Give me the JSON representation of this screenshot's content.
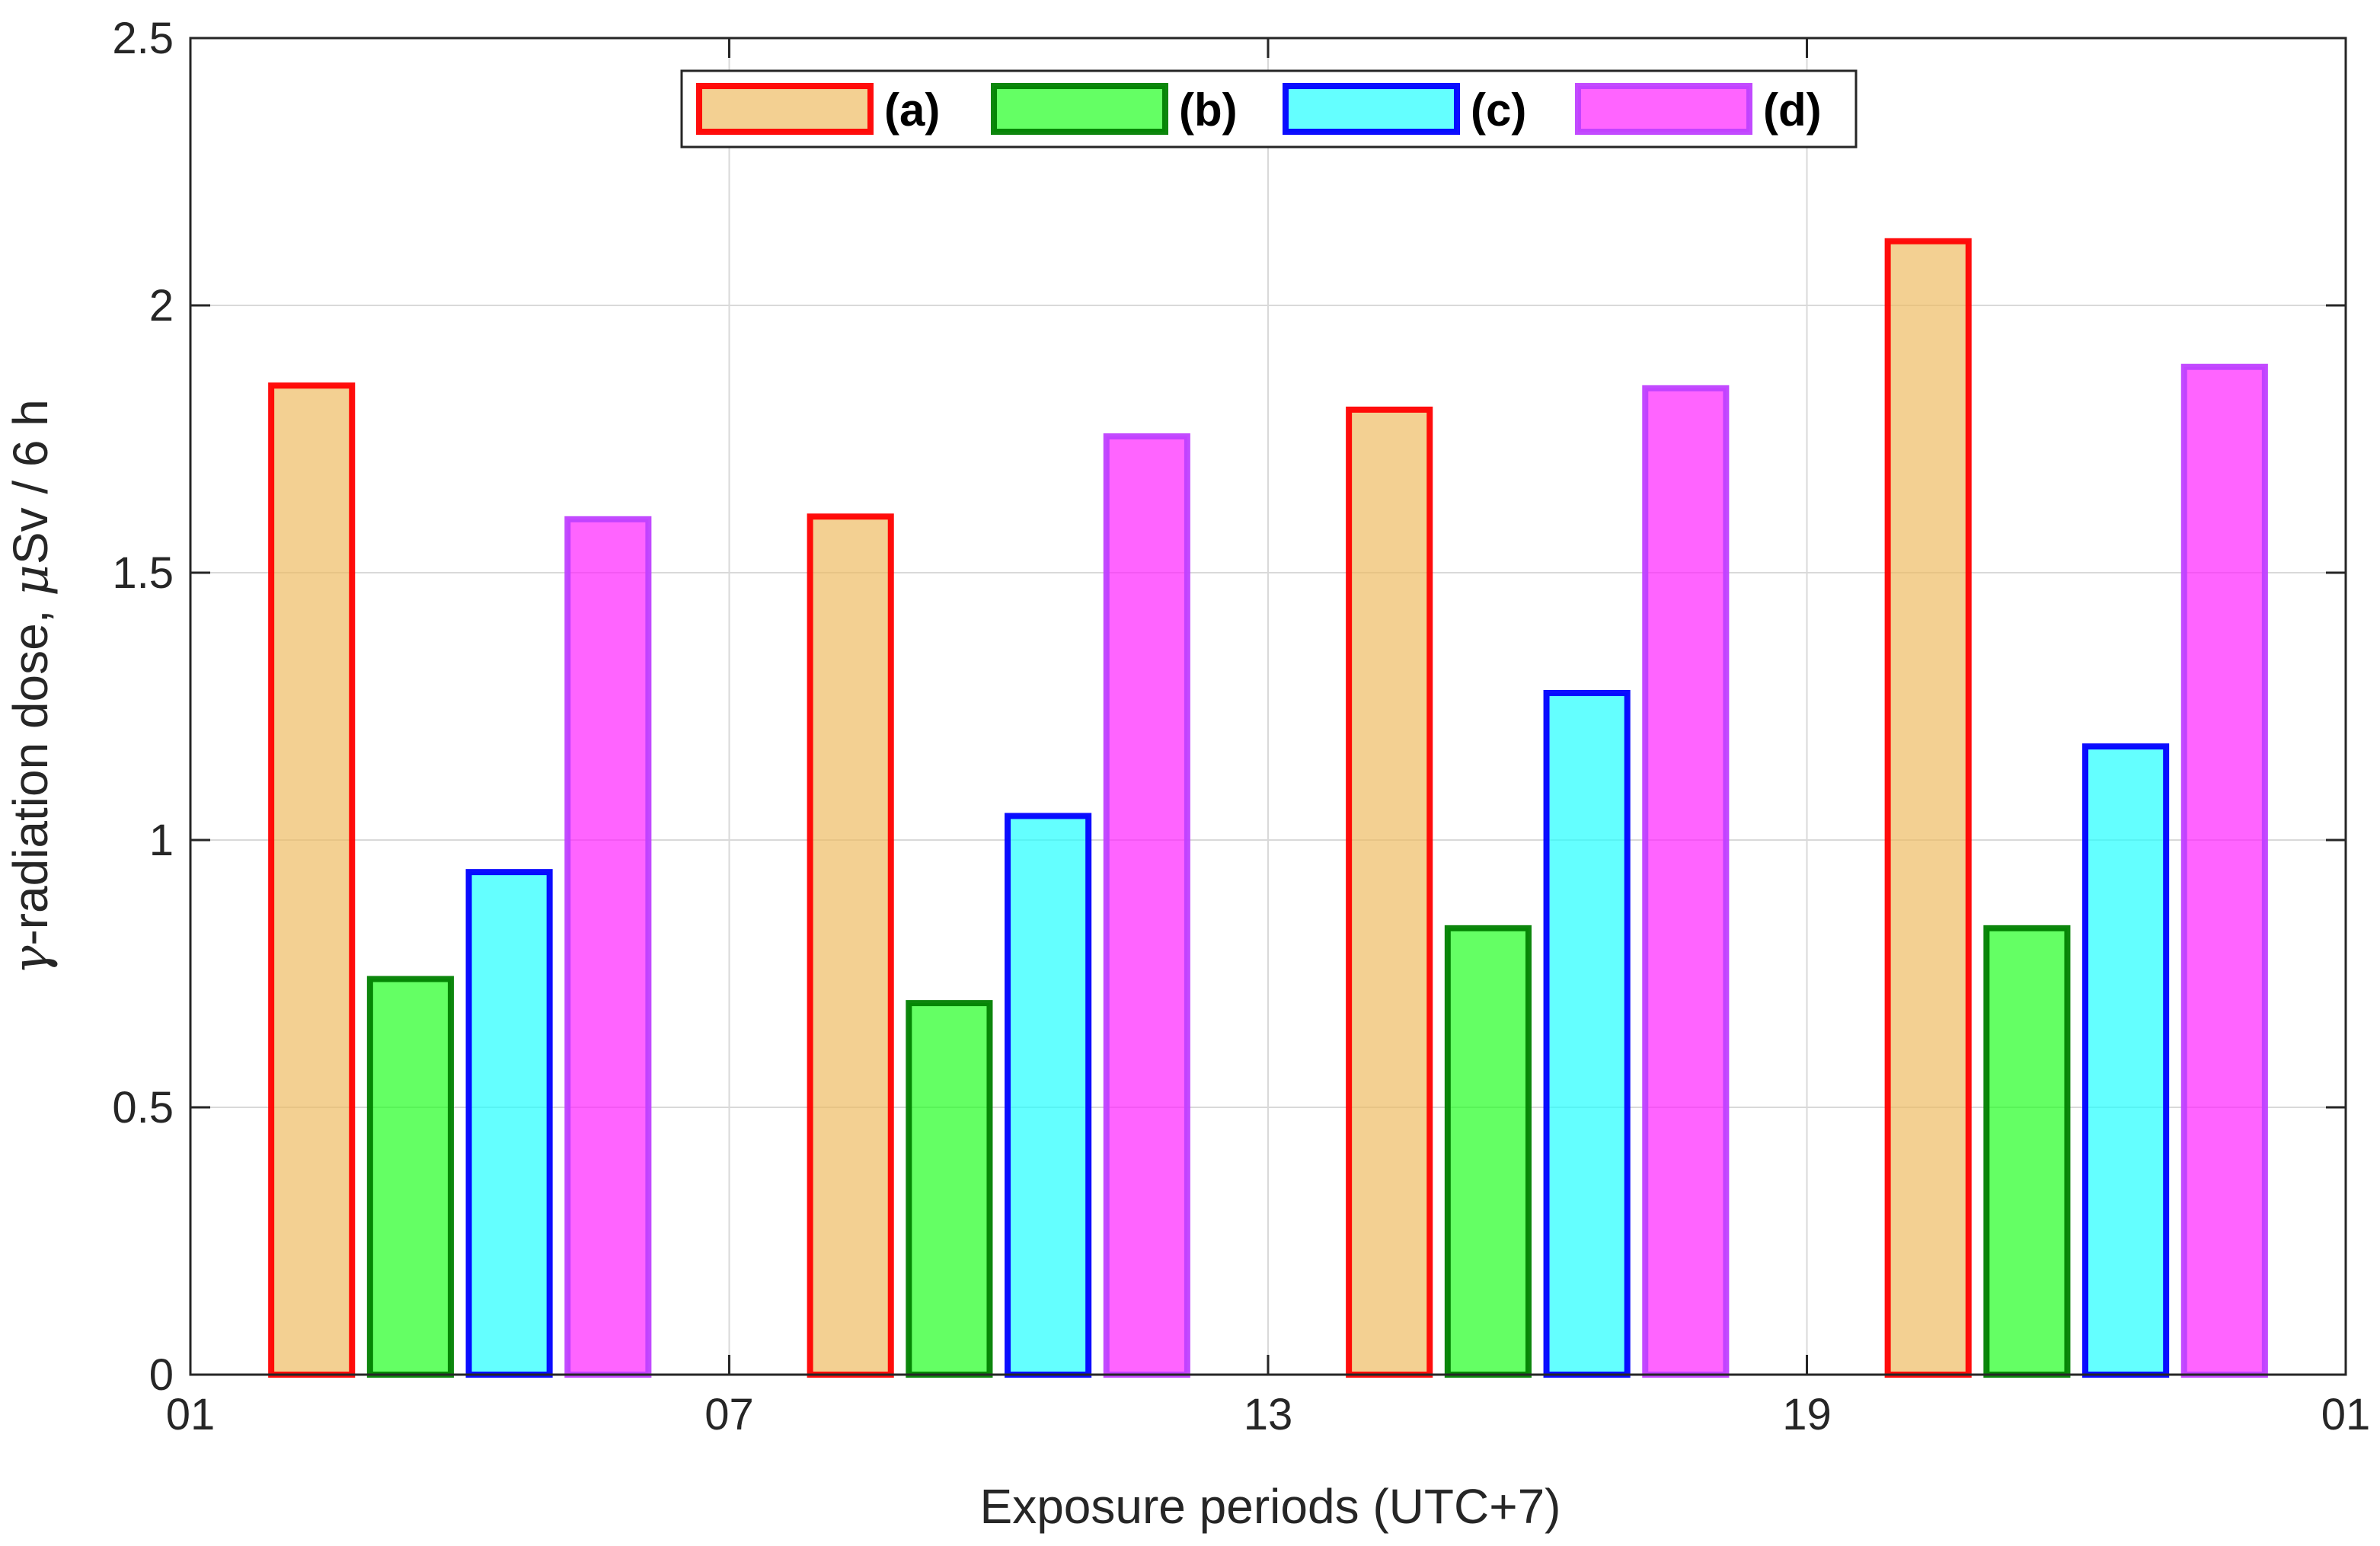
{
  "chart_data": {
    "type": "bar",
    "title": "",
    "xlabel": "Exposure periods (UTC+7)",
    "ylabel_prefix": "γ",
    "ylabel_main": "-radiation dose, ",
    "ylabel_mu": "μ",
    "ylabel_suffix": "Sv / 6 h",
    "ylim": [
      0,
      2.5
    ],
    "yticks": [
      "0",
      "0.5",
      "1",
      "1.5",
      "2",
      "2.5"
    ],
    "yticks_values": [
      0,
      0.5,
      1,
      1.5,
      2,
      2.5
    ],
    "xlim": [
      0,
      24
    ],
    "xticks": [
      "01",
      "07",
      "13",
      "19",
      "01"
    ],
    "xticks_values": [
      0,
      6,
      12,
      18,
      24
    ],
    "grid": true,
    "legend_position": "top-center",
    "group_centers": [
      3,
      9,
      15,
      21
    ],
    "series": [
      {
        "name": "(a)",
        "fill": "#EDB95E",
        "edge": "#FF0000",
        "values": [
          1.85,
          1.605,
          1.805,
          2.12
        ]
      },
      {
        "name": "(b)",
        "fill": "#1AFF1A",
        "edge": "#007F00",
        "values": [
          0.74,
          0.695,
          0.835,
          0.835
        ]
      },
      {
        "name": "(c)",
        "fill": "#1AFFFF",
        "edge": "#0000FF",
        "values": [
          0.94,
          1.045,
          1.275,
          1.175
        ]
      },
      {
        "name": "(d)",
        "fill": "#FF1AFF",
        "edge": "#BF40FF",
        "values": [
          1.6,
          1.755,
          1.845,
          1.885
        ]
      }
    ]
  }
}
